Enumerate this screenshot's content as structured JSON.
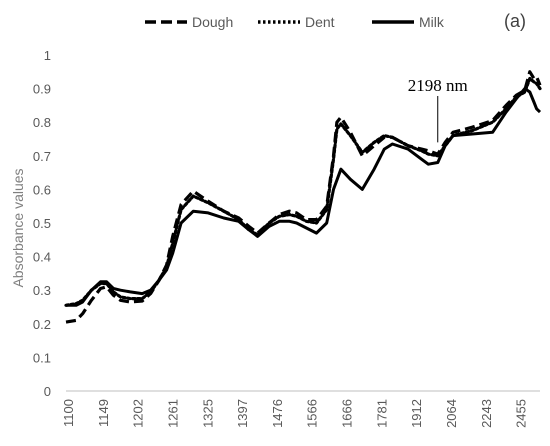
{
  "panel_label": "(a)",
  "chart_data": {
    "type": "line",
    "title": "",
    "xlabel": "",
    "ylabel": "Absorbance values",
    "ylim": [
      0,
      1
    ],
    "xlim": [
      1100,
      2500
    ],
    "yticks": [
      "0",
      "0.1",
      "0.2",
      "0.3",
      "0.4",
      "0.5",
      "0.6",
      "0.7",
      "0.8",
      "0.9",
      "1"
    ],
    "xticks": [
      "1100",
      "1149",
      "1202",
      "1261",
      "1325",
      "1397",
      "1476",
      "1566",
      "1666",
      "1781",
      "1912",
      "2064",
      "2243",
      "2455"
    ],
    "grid": false,
    "legend_position": "top",
    "annotation": {
      "text": "2198 nm",
      "x": 2198,
      "y": 0.74
    },
    "series": [
      {
        "name": "Dough",
        "style": "dashed",
        "color": "#000000",
        "points": [
          [
            1100,
            0.205
          ],
          [
            1130,
            0.21
          ],
          [
            1149,
            0.23
          ],
          [
            1175,
            0.27
          ],
          [
            1202,
            0.305
          ],
          [
            1220,
            0.31
          ],
          [
            1240,
            0.285
          ],
          [
            1261,
            0.27
          ],
          [
            1290,
            0.265
          ],
          [
            1325,
            0.268
          ],
          [
            1350,
            0.29
          ],
          [
            1375,
            0.33
          ],
          [
            1397,
            0.375
          ],
          [
            1415,
            0.46
          ],
          [
            1440,
            0.555
          ],
          [
            1476,
            0.595
          ],
          [
            1520,
            0.565
          ],
          [
            1566,
            0.535
          ],
          [
            1610,
            0.515
          ],
          [
            1640,
            0.49
          ],
          [
            1666,
            0.47
          ],
          [
            1700,
            0.5
          ],
          [
            1730,
            0.525
          ],
          [
            1760,
            0.535
          ],
          [
            1781,
            0.53
          ],
          [
            1810,
            0.51
          ],
          [
            1840,
            0.51
          ],
          [
            1870,
            0.55
          ],
          [
            1890,
            0.7
          ],
          [
            1900,
            0.8
          ],
          [
            1912,
            0.815
          ],
          [
            1940,
            0.77
          ],
          [
            1975,
            0.7
          ],
          [
            2010,
            0.73
          ],
          [
            2040,
            0.755
          ],
          [
            2064,
            0.755
          ],
          [
            2110,
            0.73
          ],
          [
            2150,
            0.72
          ],
          [
            2170,
            0.715
          ],
          [
            2198,
            0.705
          ],
          [
            2220,
            0.74
          ],
          [
            2243,
            0.77
          ],
          [
            2300,
            0.785
          ],
          [
            2360,
            0.805
          ],
          [
            2400,
            0.85
          ],
          [
            2430,
            0.88
          ],
          [
            2455,
            0.895
          ],
          [
            2470,
            0.95
          ],
          [
            2482,
            0.93
          ],
          [
            2490,
            0.935
          ],
          [
            2500,
            0.91
          ]
        ]
      },
      {
        "name": "Dent",
        "style": "dotted",
        "color": "#000000",
        "points": [
          [
            1100,
            0.255
          ],
          [
            1130,
            0.26
          ],
          [
            1149,
            0.27
          ],
          [
            1175,
            0.3
          ],
          [
            1202,
            0.32
          ],
          [
            1220,
            0.32
          ],
          [
            1240,
            0.295
          ],
          [
            1261,
            0.28
          ],
          [
            1290,
            0.275
          ],
          [
            1325,
            0.275
          ],
          [
            1350,
            0.295
          ],
          [
            1375,
            0.33
          ],
          [
            1397,
            0.37
          ],
          [
            1415,
            0.44
          ],
          [
            1440,
            0.54
          ],
          [
            1476,
            0.58
          ],
          [
            1520,
            0.56
          ],
          [
            1566,
            0.535
          ],
          [
            1610,
            0.51
          ],
          [
            1640,
            0.48
          ],
          [
            1666,
            0.465
          ],
          [
            1700,
            0.5
          ],
          [
            1730,
            0.52
          ],
          [
            1760,
            0.525
          ],
          [
            1781,
            0.52
          ],
          [
            1810,
            0.505
          ],
          [
            1840,
            0.5
          ],
          [
            1870,
            0.54
          ],
          [
            1890,
            0.69
          ],
          [
            1900,
            0.78
          ],
          [
            1912,
            0.795
          ],
          [
            1940,
            0.76
          ],
          [
            1975,
            0.71
          ],
          [
            2010,
            0.74
          ],
          [
            2040,
            0.76
          ],
          [
            2064,
            0.755
          ],
          [
            2110,
            0.73
          ],
          [
            2150,
            0.715
          ],
          [
            2170,
            0.705
          ],
          [
            2198,
            0.7
          ],
          [
            2220,
            0.73
          ],
          [
            2243,
            0.76
          ],
          [
            2300,
            0.775
          ],
          [
            2360,
            0.8
          ],
          [
            2400,
            0.84
          ],
          [
            2430,
            0.875
          ],
          [
            2455,
            0.89
          ],
          [
            2470,
            0.93
          ],
          [
            2482,
            0.92
          ],
          [
            2490,
            0.915
          ],
          [
            2500,
            0.9
          ]
        ]
      },
      {
        "name": "Milk",
        "style": "solid",
        "color": "#000000",
        "points": [
          [
            1100,
            0.255
          ],
          [
            1130,
            0.255
          ],
          [
            1149,
            0.265
          ],
          [
            1175,
            0.3
          ],
          [
            1202,
            0.325
          ],
          [
            1220,
            0.325
          ],
          [
            1240,
            0.305
          ],
          [
            1261,
            0.3
          ],
          [
            1290,
            0.295
          ],
          [
            1325,
            0.29
          ],
          [
            1350,
            0.3
          ],
          [
            1375,
            0.33
          ],
          [
            1397,
            0.36
          ],
          [
            1415,
            0.41
          ],
          [
            1440,
            0.5
          ],
          [
            1476,
            0.535
          ],
          [
            1520,
            0.53
          ],
          [
            1566,
            0.515
          ],
          [
            1610,
            0.505
          ],
          [
            1640,
            0.48
          ],
          [
            1666,
            0.46
          ],
          [
            1700,
            0.49
          ],
          [
            1730,
            0.505
          ],
          [
            1760,
            0.505
          ],
          [
            1781,
            0.5
          ],
          [
            1810,
            0.485
          ],
          [
            1840,
            0.47
          ],
          [
            1870,
            0.5
          ],
          [
            1890,
            0.6
          ],
          [
            1912,
            0.66
          ],
          [
            1940,
            0.63
          ],
          [
            1975,
            0.6
          ],
          [
            2010,
            0.66
          ],
          [
            2040,
            0.72
          ],
          [
            2064,
            0.735
          ],
          [
            2110,
            0.72
          ],
          [
            2150,
            0.69
          ],
          [
            2170,
            0.675
          ],
          [
            2198,
            0.68
          ],
          [
            2220,
            0.73
          ],
          [
            2243,
            0.76
          ],
          [
            2300,
            0.765
          ],
          [
            2360,
            0.77
          ],
          [
            2400,
            0.83
          ],
          [
            2430,
            0.87
          ],
          [
            2455,
            0.9
          ],
          [
            2470,
            0.89
          ],
          [
            2482,
            0.86
          ],
          [
            2490,
            0.84
          ],
          [
            2500,
            0.83
          ]
        ]
      }
    ]
  }
}
